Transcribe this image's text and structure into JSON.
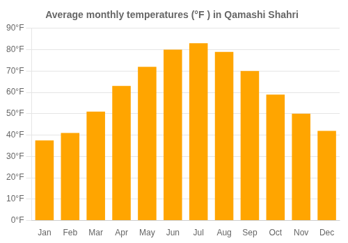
{
  "chart_data": {
    "type": "bar",
    "title": "Average monthly temperatures (°F ) in Qamashi Shahri",
    "categories": [
      "Jan",
      "Feb",
      "Mar",
      "Apr",
      "May",
      "Jun",
      "Jul",
      "Aug",
      "Sep",
      "Oct",
      "Nov",
      "Dec"
    ],
    "values": [
      37.5,
      41,
      51,
      63,
      72,
      80,
      83,
      79,
      70,
      59,
      50,
      42
    ],
    "color": "#FFA500",
    "ylim": [
      0,
      90
    ],
    "yticks": [
      {
        "value": 0,
        "label": "0°F"
      },
      {
        "value": 10,
        "label": "10°F"
      },
      {
        "value": 20,
        "label": "20°F"
      },
      {
        "value": 30,
        "label": "30°F"
      },
      {
        "value": 40,
        "label": "40°F"
      },
      {
        "value": 50,
        "label": "50°F"
      },
      {
        "value": 60,
        "label": "60°F"
      },
      {
        "value": 70,
        "label": "70°F"
      },
      {
        "value": 80,
        "label": "80°F"
      },
      {
        "value": 90,
        "label": "90°F"
      }
    ],
    "grid": true
  }
}
